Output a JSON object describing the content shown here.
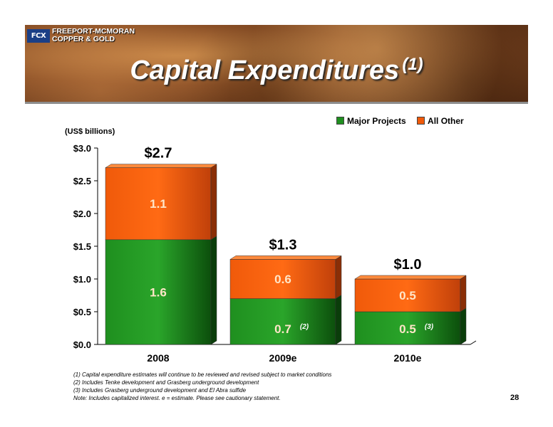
{
  "header": {
    "logo_mark": "FCX",
    "logo_line1": "FREEPORT-MCMORAN",
    "logo_line2": "COPPER & GOLD",
    "title": "Capital Expenditures",
    "title_superscript": "(1)"
  },
  "chart_data": {
    "type": "bar",
    "stacked": true,
    "categories": [
      "2008",
      "2009e",
      "2010e"
    ],
    "series": [
      {
        "name": "Major Projects",
        "values": [
          1.6,
          0.7,
          0.5
        ],
        "labels": [
          "1.6",
          "0.7",
          "0.5"
        ],
        "color": "#1f8f1f"
      },
      {
        "name": "All Other",
        "values": [
          1.1,
          0.6,
          0.5
        ],
        "labels": [
          "1.1",
          "0.6",
          "0.5"
        ],
        "color": "#f05a0a"
      }
    ],
    "totals": [
      "$2.7",
      "$1.3",
      "$1.0"
    ],
    "bar_notes": [
      "",
      "(2)",
      "(3)"
    ],
    "ylabel": "(US$ billions)",
    "ylim": [
      0,
      3.0
    ],
    "yticks": [
      0,
      0.5,
      1.0,
      1.5,
      2.0,
      2.5,
      3.0
    ],
    "ytick_labels": [
      "$0.0",
      "$0.5",
      "$1.0",
      "$1.5",
      "$2.0",
      "$2.5",
      "$3.0"
    ],
    "legend_position": "top-right",
    "grid": false
  },
  "footnotes": [
    "(1) Capital expenditure estimates will continue to be reviewed and revised subject to market conditions",
    "(2) Includes Tenke development and Grasberg underground development",
    "(3) Includes Grasberg underground development and El Abra sulfide",
    "Note: Includes capitalized interest.   e = estimate. Please see cautionary statement."
  ],
  "page_number": "28"
}
